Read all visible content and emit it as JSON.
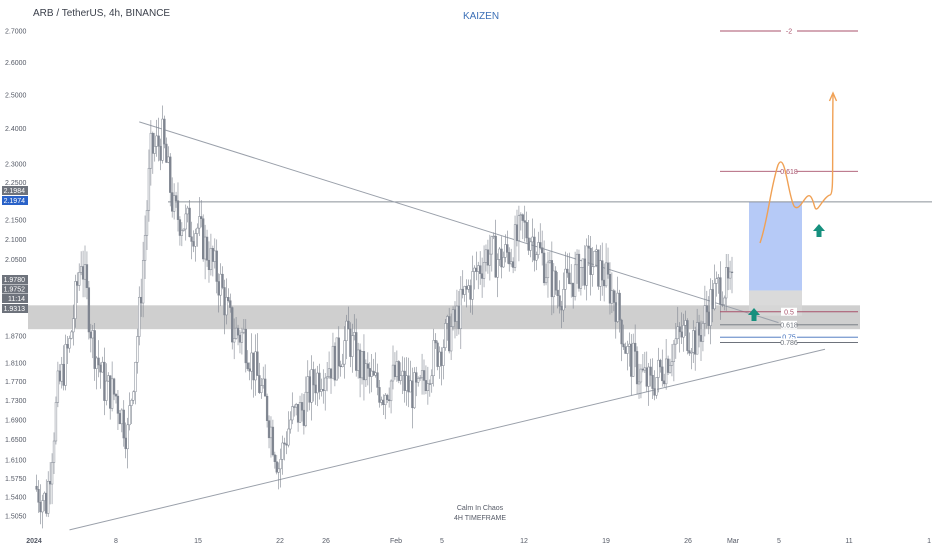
{
  "header": {
    "symbol": "ARB / TetherUS, 4h, BINANCE",
    "brand": "KAIZEN"
  },
  "footer_notes": {
    "line1": "Calm In Chaos",
    "line2": "4H TIMEFRAME"
  },
  "colors": {
    "candle": "#7f8590",
    "trendline": "#9aa0aa",
    "support_zone": "#bfbfbf",
    "target_box": "#a9c1f6",
    "projection_path": "#f0a155",
    "arrow": "#16907e",
    "fib_red": "#a8526b",
    "fib_blue": "#3e6dbb",
    "fib_grey": "#6e737c",
    "tag_dark": "#6e737c",
    "tag_blue": "#2a62c8"
  },
  "price_tags": [
    {
      "value": "2.1984",
      "style": "dark"
    },
    {
      "value": "2.1974",
      "style": "blue"
    },
    {
      "value": "1.9780",
      "style": "dark"
    },
    {
      "value": "1.9752",
      "style": "dark"
    },
    {
      "value": "11:14",
      "style": "dark"
    },
    {
      "value": "1.9313",
      "style": "dark"
    }
  ],
  "chart_data": {
    "type": "candlestick",
    "symbol": "ARB / TetherUS",
    "timeframe": "4h",
    "exchange": "BINANCE",
    "y_axis": {
      "range": [
        1.49,
        2.77
      ],
      "scale": "log",
      "ticks": [
        "2.7000",
        "2.6000",
        "2.5000",
        "2.4000",
        "2.3000",
        "2.2500",
        "2.1500",
        "2.1000",
        "2.0500",
        "1.9780",
        "1.9752",
        "1.8700",
        "1.8100",
        "1.7700",
        "1.7300",
        "1.6900",
        "1.6500",
        "1.6100",
        "1.5750",
        "1.5400",
        "1.5050"
      ]
    },
    "x_axis": {
      "ticks": [
        "2024",
        "8",
        "15",
        "22",
        "26",
        "Feb",
        "5",
        "12",
        "19",
        "26",
        "Mar",
        "5",
        "11",
        "1"
      ]
    },
    "price_path": [
      {
        "date": "2024-01-01",
        "close": 1.56
      },
      {
        "date": "2024-01-02",
        "close": 1.53
      },
      {
        "date": "2024-01-03",
        "close": 1.75
      },
      {
        "date": "2024-01-04",
        "close": 1.85
      },
      {
        "date": "2024-01-05",
        "close": 2.06
      },
      {
        "date": "2024-01-06",
        "close": 1.86
      },
      {
        "date": "2024-01-07",
        "close": 1.76
      },
      {
        "date": "2024-01-08",
        "close": 1.74
      },
      {
        "date": "2024-01-09",
        "close": 1.66
      },
      {
        "date": "2024-01-10",
        "close": 1.92
      },
      {
        "date": "2024-01-11",
        "close": 2.33
      },
      {
        "date": "2024-01-12",
        "close": 2.37
      },
      {
        "date": "2024-01-13",
        "close": 2.17
      },
      {
        "date": "2024-01-14",
        "close": 2.14
      },
      {
        "date": "2024-01-15",
        "close": 2.13
      },
      {
        "date": "2024-01-16",
        "close": 2.06
      },
      {
        "date": "2024-01-17",
        "close": 1.99
      },
      {
        "date": "2024-01-18",
        "close": 1.88
      },
      {
        "date": "2024-01-19",
        "close": 1.87
      },
      {
        "date": "2024-01-20",
        "close": 1.79
      },
      {
        "date": "2024-01-21",
        "close": 1.71
      },
      {
        "date": "2024-01-22",
        "close": 1.6
      },
      {
        "date": "2024-01-23",
        "close": 1.69
      },
      {
        "date": "2024-01-24",
        "close": 1.71
      },
      {
        "date": "2024-01-25",
        "close": 1.77
      },
      {
        "date": "2024-01-26",
        "close": 1.8
      },
      {
        "date": "2024-01-27",
        "close": 1.82
      },
      {
        "date": "2024-01-28",
        "close": 1.87
      },
      {
        "date": "2024-01-29",
        "close": 1.8
      },
      {
        "date": "2024-01-30",
        "close": 1.77
      },
      {
        "date": "2024-01-31",
        "close": 1.75
      },
      {
        "date": "2024-02-01",
        "close": 1.78
      },
      {
        "date": "2024-02-02",
        "close": 1.76
      },
      {
        "date": "2024-02-03",
        "close": 1.74
      },
      {
        "date": "2024-02-04",
        "close": 1.81
      },
      {
        "date": "2024-02-05",
        "close": 1.85
      },
      {
        "date": "2024-02-06",
        "close": 1.89
      },
      {
        "date": "2024-02-07",
        "close": 1.96
      },
      {
        "date": "2024-02-08",
        "close": 2.02
      },
      {
        "date": "2024-02-09",
        "close": 2.07
      },
      {
        "date": "2024-02-10",
        "close": 2.05
      },
      {
        "date": "2024-02-11",
        "close": 2.07
      },
      {
        "date": "2024-02-12",
        "close": 2.13
      },
      {
        "date": "2024-02-13",
        "close": 2.1
      },
      {
        "date": "2024-02-14",
        "close": 2.03
      },
      {
        "date": "2024-02-15",
        "close": 1.97
      },
      {
        "date": "2024-02-16",
        "close": 1.99
      },
      {
        "date": "2024-02-17",
        "close": 2.03
      },
      {
        "date": "2024-02-18",
        "close": 2.04
      },
      {
        "date": "2024-02-19",
        "close": 2.01
      },
      {
        "date": "2024-02-20",
        "close": 1.95
      },
      {
        "date": "2024-02-21",
        "close": 1.83
      },
      {
        "date": "2024-02-22",
        "close": 1.79
      },
      {
        "date": "2024-02-23",
        "close": 1.76
      },
      {
        "date": "2024-02-24",
        "close": 1.8
      },
      {
        "date": "2024-02-25",
        "close": 1.85
      },
      {
        "date": "2024-02-26",
        "close": 1.88
      },
      {
        "date": "2024-02-27",
        "close": 1.86
      },
      {
        "date": "2024-02-28",
        "close": 1.94
      },
      {
        "date": "2024-02-29",
        "close": 1.99
      },
      {
        "date": "2024-03-01",
        "close": 1.975
      }
    ],
    "drawings": {
      "upper_trendline": {
        "from": {
          "date": "2024-01-10",
          "price": 2.42
        },
        "to": {
          "date": "2024-03-05",
          "price": 1.9
        }
      },
      "lower_trendline": {
        "from": {
          "date": "2024-01-04",
          "price": 1.48
        },
        "to": {
          "date": "2024-03-09",
          "price": 1.84
        }
      },
      "horizontal_level": {
        "price": 2.1974
      },
      "support_zone": {
        "top": 1.94,
        "bottom": 1.885
      },
      "target_box": {
        "top": 2.1974,
        "bottom": 1.975
      },
      "fib_levels": [
        {
          "label": "-2",
          "price": 2.7,
          "color": "red"
        },
        {
          "label": "0.618",
          "price": 2.28,
          "color": "red"
        },
        {
          "label": "0.5",
          "price": 1.925,
          "color": "red"
        },
        {
          "label": "0.618",
          "price": 1.895,
          "color": "grey"
        },
        {
          "label": "0.75",
          "price": 1.867,
          "color": "blue"
        },
        {
          "label": "0.786",
          "price": 1.855,
          "color": "grey"
        }
      ]
    }
  }
}
